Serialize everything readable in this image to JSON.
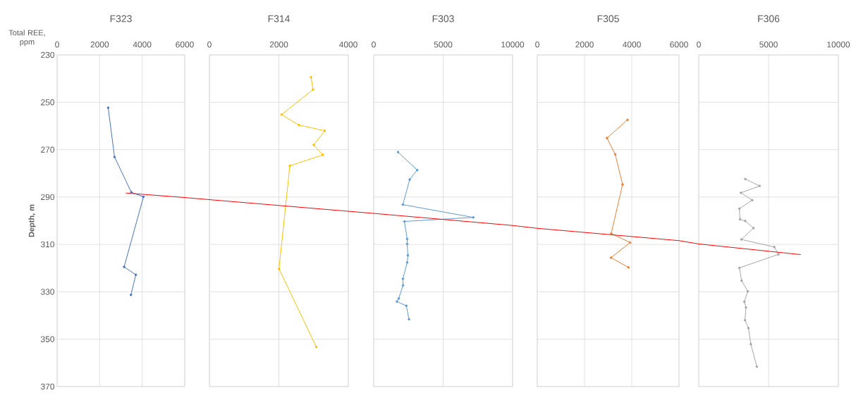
{
  "chart_data": [
    {
      "type": "line",
      "title": "F323",
      "xlabel": "Total REE, ppm",
      "ylabel": "Depth, m",
      "xlim": [
        0,
        6000
      ],
      "xticks": [
        0,
        2000,
        4000,
        6000
      ],
      "ylim": [
        370,
        230
      ],
      "yticks": [
        230,
        250,
        270,
        290,
        310,
        330,
        350,
        370
      ],
      "grid": true,
      "marker": "circle",
      "series": [
        {
          "color": "#4472c4",
          "x": [
            2400,
            2700,
            3490,
            4060,
            3150,
            3700,
            3470
          ],
          "values": [
            252.3,
            273.1,
            288.0,
            289.9,
            319.5,
            322.8,
            331.3
          ]
        },
        {
          "color": "#ff0000",
          "marker": "none",
          "x": [
            3230,
            6000
          ],
          "values": [
            288.3,
            290.2
          ]
        }
      ]
    },
    {
      "type": "line",
      "title": "F314",
      "xlim": [
        0,
        4000
      ],
      "xticks": [
        0,
        2000,
        4000
      ],
      "ylim": [
        370,
        230
      ],
      "yticks": [
        230,
        250,
        270,
        290,
        310,
        330,
        350,
        370
      ],
      "grid": true,
      "marker": "circle",
      "tick_labels": "x",
      "series": [
        {
          "color": "#ffc000",
          "x": [
            2925,
            2984,
            2076,
            2577,
            3318,
            3005,
            3267,
            2316,
            2004,
            3078
          ],
          "values": [
            239.4,
            244.6,
            255.2,
            259.6,
            262.0,
            268.0,
            272.2,
            276.8,
            320.3,
            353.3
          ]
        },
        {
          "color": "#ff0000",
          "marker": "none",
          "x": [
            0,
            4000
          ],
          "values": [
            291.1,
            296.0
          ]
        }
      ]
    },
    {
      "type": "line",
      "title": "F303",
      "xlim": [
        0,
        10000
      ],
      "xticks": [
        0,
        5000,
        10000
      ],
      "ylim": [
        370,
        230
      ],
      "yticks": [
        230,
        250,
        270,
        290,
        310,
        330,
        350,
        370
      ],
      "grid": true,
      "marker": "circle",
      "tick_labels": "x",
      "series": [
        {
          "color": "#5b9bd5",
          "x": [
            1750,
            3130,
            2590,
            2100,
            7170,
            2210,
            2410,
            2410,
            2460,
            2410,
            2100,
            2110,
            1800,
            1670,
            2350,
            2540
          ],
          "values": [
            271.0,
            278.6,
            282.6,
            293.2,
            298.6,
            300.3,
            307.7,
            309.8,
            314.6,
            317.6,
            324.5,
            327.3,
            332.8,
            334.1,
            335.9,
            341.6
          ]
        },
        {
          "color": "#ff0000",
          "marker": "none",
          "x": [
            0,
            10000
          ],
          "values": [
            296.9,
            302.0
          ]
        }
      ]
    },
    {
      "type": "line",
      "title": "F305",
      "xlim": [
        0,
        6000
      ],
      "xticks": [
        0,
        2000,
        4000,
        6000
      ],
      "ylim": [
        370,
        230
      ],
      "yticks": [
        230,
        250,
        270,
        290,
        310,
        330,
        350,
        370
      ],
      "grid": true,
      "marker": "circle",
      "tick_labels": "x",
      "series": [
        {
          "color": "#ed7d31",
          "x": [
            3820,
            2950,
            3300,
            3610,
            3130,
            3930,
            3120,
            3860
          ],
          "values": [
            257.4,
            265.1,
            272.0,
            284.7,
            305.4,
            309.2,
            315.6,
            319.7
          ]
        },
        {
          "color": "#ff0000",
          "marker": "none",
          "x": [
            0,
            6000
          ],
          "values": [
            303.2,
            308.4
          ]
        }
      ]
    },
    {
      "type": "line",
      "title": "F306",
      "xlim": [
        0,
        10000
      ],
      "xticks": [
        0,
        5000,
        10000
      ],
      "ylim": [
        370,
        230
      ],
      "yticks": [
        230,
        250,
        270,
        290,
        310,
        330,
        350,
        370
      ],
      "grid": true,
      "marker": "circle",
      "tick_labels": "x",
      "series": [
        {
          "color": "#a5a5a5",
          "x": [
            3330,
            4360,
            3020,
            3830,
            2910,
            2950,
            3330,
            3920,
            3060,
            5410,
            5710,
            2910,
            3070,
            3510,
            3260,
            3380,
            3310,
            3560,
            3730,
            4160
          ],
          "values": [
            282.4,
            285.3,
            288.2,
            291.3,
            294.9,
            299.4,
            300.1,
            303.1,
            307.9,
            311.1,
            314.2,
            319.9,
            325.3,
            329.8,
            334.2,
            336.6,
            342.0,
            345.3,
            352.1,
            361.6
          ]
        },
        {
          "color": "#ff0000",
          "marker": "none",
          "x": [
            0,
            7306
          ],
          "values": [
            309.8,
            314.3
          ]
        }
      ]
    }
  ]
}
